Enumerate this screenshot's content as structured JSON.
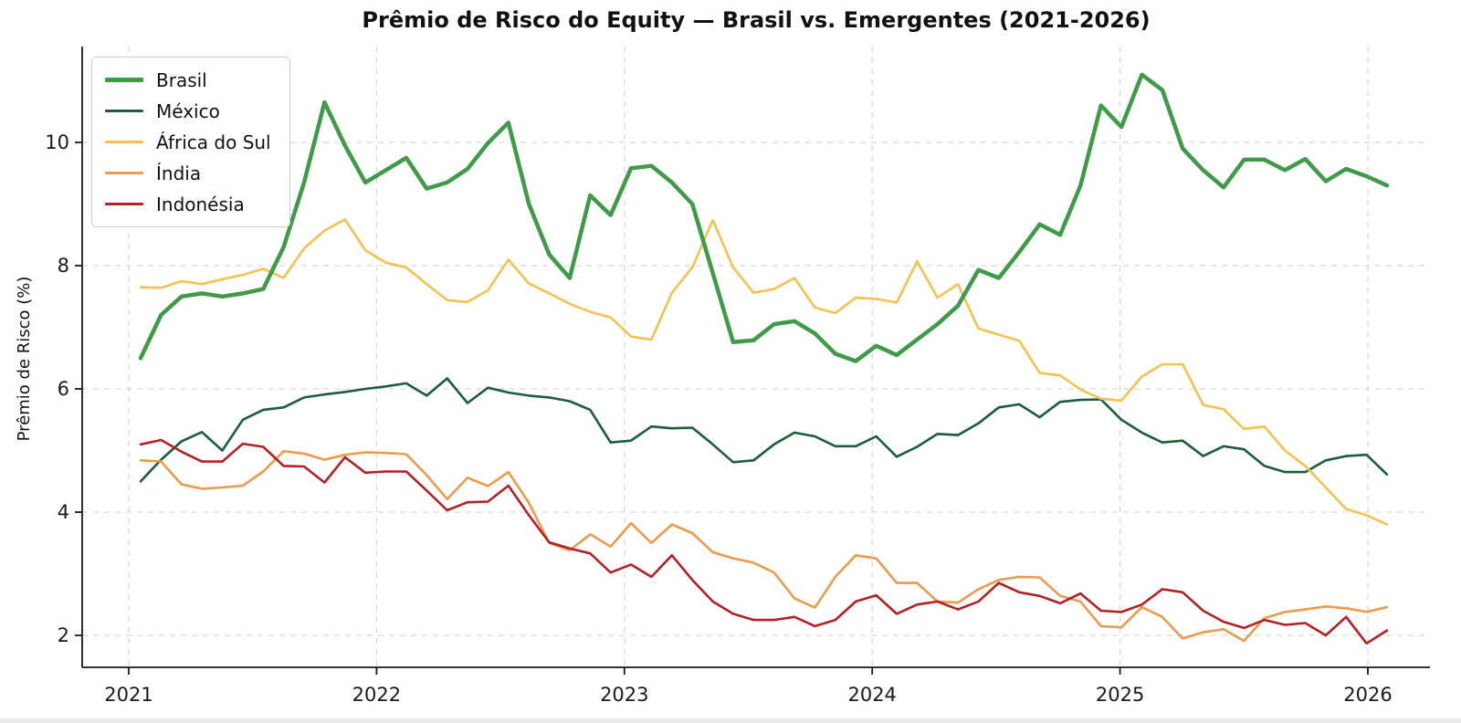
{
  "title": "Prêmio de Risco do Equity — Brasil vs. Emergentes (2021-2026)",
  "y_axis_label": "Prêmio de Risco (%)",
  "chart_data": {
    "type": "line",
    "title": "Prêmio de Risco do Equity — Brasil vs. Emergentes (2021-2026)",
    "xlabel": "",
    "ylabel": "Prêmio de Risco (%)",
    "grid": true,
    "grid_color": "#d9d9d9",
    "legend_position": "upper-left",
    "axis_color": "#1a1a1a",
    "y_ticks": [
      2,
      4,
      6,
      8,
      10
    ],
    "ylim": [
      1.48,
      11.56
    ],
    "x_tick_labels": [
      "2021",
      "2022",
      "2023",
      "2024",
      "2025",
      "2026"
    ],
    "x_labels": [
      "2021-01",
      "2021-02",
      "2021-03",
      "2021-04",
      "2021-05",
      "2021-06",
      "2021-07",
      "2021-08",
      "2021-09",
      "2021-10",
      "2021-11",
      "2021-12",
      "2022-01",
      "2022-02",
      "2022-03",
      "2022-04",
      "2022-05",
      "2022-06",
      "2022-07",
      "2022-08",
      "2022-09",
      "2022-10",
      "2022-11",
      "2022-12",
      "2023-01",
      "2023-02",
      "2023-03",
      "2023-04",
      "2023-05",
      "2023-06",
      "2023-07",
      "2023-08",
      "2023-09",
      "2023-10",
      "2023-11",
      "2023-12",
      "2024-01",
      "2024-02",
      "2024-03",
      "2024-04",
      "2024-05",
      "2024-06",
      "2024-07",
      "2024-08",
      "2024-09",
      "2024-10",
      "2024-11",
      "2024-12",
      "2025-01",
      "2025-02",
      "2025-03",
      "2025-04",
      "2025-05",
      "2025-06",
      "2025-07",
      "2025-08",
      "2025-09",
      "2025-10",
      "2025-11",
      "2025-12",
      "2026-01",
      "2026-02"
    ],
    "series": [
      {
        "name": "Brasil",
        "color": "#3e9b47",
        "line_width": 4.5,
        "zorder": 5,
        "values": [
          6.5,
          7.2,
          7.5,
          7.55,
          7.5,
          7.55,
          7.62,
          8.3,
          9.35,
          10.65,
          9.95,
          9.35,
          9.55,
          9.75,
          9.25,
          9.35,
          9.57,
          9.99,
          10.32,
          9.0,
          8.18,
          7.8,
          9.14,
          8.82,
          9.58,
          9.62,
          9.35,
          9.0,
          7.88,
          6.76,
          6.79,
          7.05,
          7.1,
          6.9,
          6.57,
          6.45,
          6.7,
          6.55,
          6.8,
          7.05,
          7.35,
          7.93,
          7.8,
          8.22,
          8.67,
          8.5,
          9.3,
          10.6,
          10.25,
          11.1,
          10.85,
          9.9,
          9.55,
          9.27,
          9.72,
          9.72,
          9.55,
          9.73,
          9.37,
          9.57,
          9.45,
          9.3
        ]
      },
      {
        "name": "México",
        "color": "#1b5e3b",
        "line_width": 2.6,
        "zorder": 1,
        "values": [
          4.5,
          4.85,
          5.15,
          5.3,
          5.0,
          5.5,
          5.66,
          5.7,
          5.86,
          5.91,
          5.95,
          6.0,
          6.04,
          6.09,
          5.89,
          6.17,
          5.77,
          6.02,
          5.94,
          5.89,
          5.86,
          5.8,
          5.66,
          5.13,
          5.16,
          5.39,
          5.36,
          5.37,
          5.1,
          4.81,
          4.84,
          5.1,
          5.29,
          5.23,
          5.07,
          5.07,
          5.23,
          4.9,
          5.06,
          5.27,
          5.25,
          5.44,
          5.7,
          5.75,
          5.54,
          5.79,
          5.82,
          5.83,
          5.5,
          5.29,
          5.13,
          5.16,
          4.91,
          5.07,
          5.02,
          4.75,
          4.65,
          4.65,
          4.84,
          4.91,
          4.93,
          4.61
        ]
      },
      {
        "name": "África do Sul",
        "color": "#f4c24e",
        "line_width": 2.6,
        "zorder": 2,
        "values": [
          7.65,
          7.64,
          7.75,
          7.7,
          7.78,
          7.85,
          7.95,
          7.8,
          8.28,
          8.57,
          8.75,
          8.25,
          8.05,
          7.97,
          7.7,
          7.44,
          7.41,
          7.6,
          8.1,
          7.71,
          7.55,
          7.38,
          7.25,
          7.16,
          6.85,
          6.8,
          7.56,
          7.97,
          8.74,
          7.97,
          7.56,
          7.62,
          7.8,
          7.32,
          7.23,
          7.48,
          7.46,
          7.4,
          8.07,
          7.48,
          7.7,
          6.98,
          6.88,
          6.78,
          6.26,
          6.22,
          5.99,
          5.84,
          5.81,
          6.2,
          6.4,
          6.4,
          5.74,
          5.67,
          5.35,
          5.39,
          5.0,
          4.75,
          4.4,
          4.05,
          3.95,
          3.8
        ]
      },
      {
        "name": "Índia",
        "color": "#ee9a4d",
        "line_width": 2.6,
        "zorder": 3,
        "values": [
          4.84,
          4.82,
          4.45,
          4.38,
          4.4,
          4.43,
          4.66,
          4.99,
          4.95,
          4.85,
          4.93,
          4.97,
          4.96,
          4.94,
          4.6,
          4.21,
          4.56,
          4.42,
          4.65,
          4.15,
          3.5,
          3.38,
          3.64,
          3.44,
          3.82,
          3.5,
          3.8,
          3.66,
          3.35,
          3.25,
          3.18,
          3.02,
          2.6,
          2.45,
          2.95,
          3.3,
          3.25,
          2.85,
          2.85,
          2.55,
          2.53,
          2.75,
          2.9,
          2.95,
          2.94,
          2.64,
          2.55,
          2.15,
          2.13,
          2.46,
          2.3,
          1.95,
          2.05,
          2.1,
          1.91,
          2.28,
          2.38,
          2.42,
          2.47,
          2.44,
          2.38,
          2.46
        ]
      },
      {
        "name": "Indonésia",
        "color": "#b42125",
        "line_width": 2.6,
        "zorder": 4,
        "values": [
          5.1,
          5.17,
          4.98,
          4.82,
          4.82,
          5.11,
          5.06,
          4.75,
          4.74,
          4.48,
          4.89,
          4.64,
          4.66,
          4.66,
          4.35,
          4.03,
          4.16,
          4.17,
          4.43,
          3.95,
          3.51,
          3.41,
          3.33,
          3.02,
          3.15,
          2.95,
          3.3,
          2.9,
          2.55,
          2.35,
          2.25,
          2.25,
          2.3,
          2.15,
          2.25,
          2.55,
          2.65,
          2.35,
          2.5,
          2.55,
          2.42,
          2.55,
          2.85,
          2.7,
          2.64,
          2.52,
          2.68,
          2.4,
          2.38,
          2.5,
          2.75,
          2.7,
          2.4,
          2.22,
          2.12,
          2.25,
          2.17,
          2.2,
          2.0,
          2.3,
          1.87,
          2.08
        ]
      }
    ]
  }
}
